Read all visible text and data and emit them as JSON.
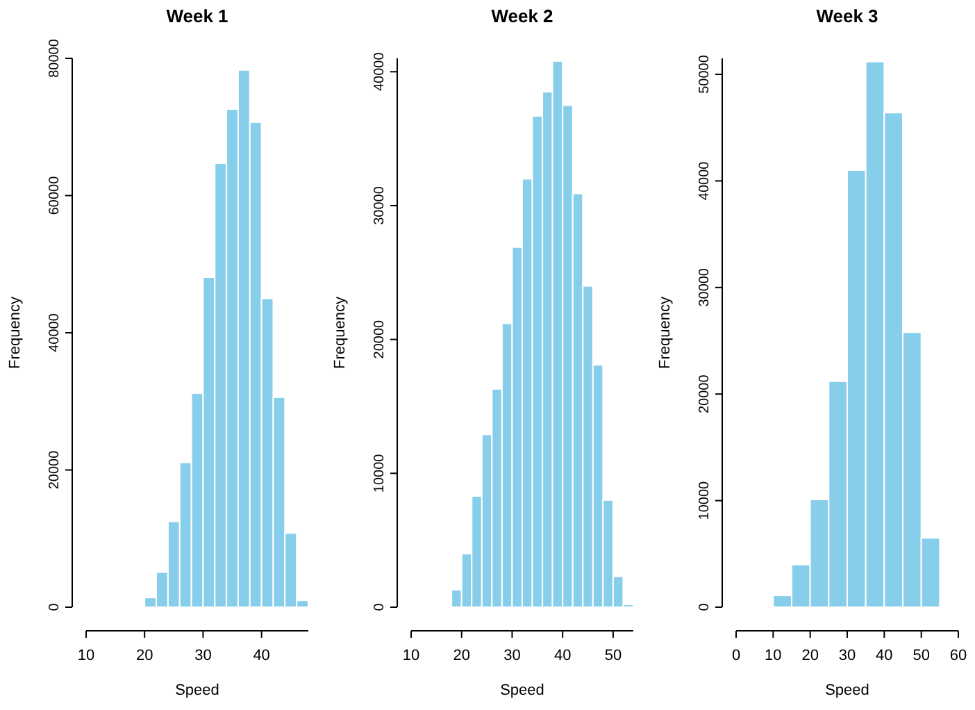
{
  "chart_data": [
    {
      "type": "histogram",
      "title": "Week 1",
      "xlabel": "Speed",
      "ylabel": "Frequency",
      "color": "#87ceeb",
      "bins": [
        18,
        20,
        22,
        24,
        26,
        28,
        30,
        32,
        34,
        36,
        38,
        40,
        42,
        44,
        46,
        48
      ],
      "values": [
        200,
        1400,
        5100,
        12500,
        21100,
        31200,
        48100,
        64700,
        72600,
        78300,
        70700,
        45000,
        30600,
        10800,
        1000
      ],
      "xlim": [
        10,
        48
      ],
      "xticks": [
        10,
        20,
        30,
        40
      ],
      "ylim": [
        0,
        80000
      ],
      "yticks": [
        0,
        20000,
        40000,
        60000,
        80000
      ]
    },
    {
      "type": "histogram",
      "title": "Week 2",
      "xlabel": "Speed",
      "ylabel": "Frequency",
      "color": "#87ceeb",
      "bins": [
        16,
        18,
        20,
        22,
        24,
        26,
        28,
        30,
        32,
        34,
        36,
        38,
        40,
        42,
        44,
        46,
        48,
        50,
        52,
        54
      ],
      "values": [
        100,
        1300,
        4000,
        8300,
        12900,
        16300,
        21200,
        26900,
        32000,
        36700,
        38500,
        40800,
        37500,
        30900,
        24000,
        18100,
        8000,
        2300,
        200
      ],
      "xlim": [
        10,
        54
      ],
      "xticks": [
        10,
        20,
        30,
        40,
        50
      ],
      "ylim": [
        0,
        41000
      ],
      "yticks": [
        0,
        10000,
        20000,
        30000,
        40000
      ]
    },
    {
      "type": "histogram",
      "title": "Week 3",
      "xlabel": "Speed",
      "ylabel": "Frequency",
      "color": "#87ceeb",
      "bins": [
        10,
        15,
        20,
        25,
        30,
        35,
        40,
        45,
        50,
        55
      ],
      "values": [
        1100,
        4000,
        10100,
        21200,
        41000,
        51200,
        46400,
        25800,
        6500
      ],
      "xlim": [
        0,
        60
      ],
      "xticks": [
        0,
        10,
        20,
        30,
        40,
        50,
        60
      ],
      "ylim": [
        0,
        51500
      ],
      "yticks": [
        0,
        10000,
        20000,
        30000,
        40000,
        50000
      ]
    }
  ]
}
